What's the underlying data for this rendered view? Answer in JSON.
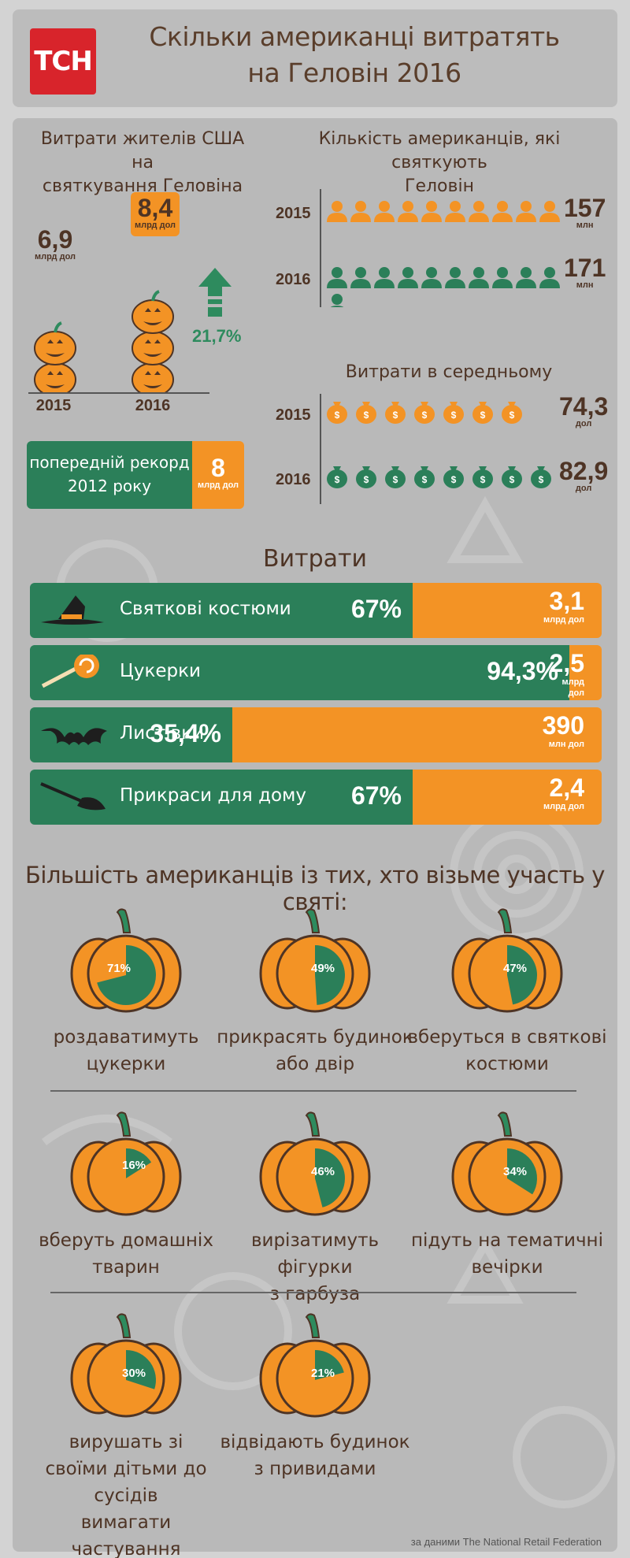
{
  "header": {
    "logo_text": "ТСН",
    "title_line1": "Скільки американці витратять",
    "title_line2": "на Геловін 2016"
  },
  "spending": {
    "heading_line1": "Витрати жителів США на",
    "heading_line2": "святкування Геловіна",
    "v2015": "6,9",
    "v2016": "8,4",
    "unit": "млрд дол",
    "year2015": "2015",
    "year2016": "2016",
    "growth": "21,7%",
    "record_line1": "попередній рекорд",
    "record_line2": "2012 року",
    "record_value": "8",
    "record_unit": "млрд дол"
  },
  "celebrants": {
    "heading_line1": "Кількість американців, які святкують",
    "heading_line2": "Геловін",
    "year2015": "2015",
    "year2016": "2016",
    "v2015": "157",
    "v2016": "171",
    "unit": "млн"
  },
  "average": {
    "heading": "Витрати в середньому",
    "year2015": "2015",
    "year2016": "2016",
    "v2015": "74,3",
    "v2016": "82,9",
    "unit": "дол"
  },
  "expenses": {
    "heading": "Витрати",
    "rows": [
      {
        "label": "Святкові костюми",
        "pct": "67%",
        "value": "3,1",
        "unit": "млрд дол",
        "icon": "witch-hat-icon"
      },
      {
        "label": "Цукерки",
        "pct": "94,3%",
        "value": "2,5",
        "unit": "млрд дол",
        "icon": "lollipop-icon"
      },
      {
        "label": "Листівки",
        "pct": "35,4%",
        "value": "390",
        "unit": "млн дол",
        "icon": "bat-icon"
      },
      {
        "label": "Прикраси для дому",
        "pct": "67%",
        "value": "2,4",
        "unit": "млрд дол",
        "icon": "broom-icon"
      }
    ]
  },
  "majority": {
    "heading": "Більшість американців із тих, хто візьме участь у святі:",
    "items": [
      {
        "pct": "71%",
        "line1": "роздаватимуть",
        "line2": "цукерки",
        "line3": ""
      },
      {
        "pct": "49%",
        "line1": "прикрасять будинок",
        "line2": "або двір",
        "line3": ""
      },
      {
        "pct": "47%",
        "line1": "вберуться в святкові",
        "line2": "костюми",
        "line3": ""
      },
      {
        "pct": "16%",
        "line1": "вберуть домашніх",
        "line2": "тварин",
        "line3": ""
      },
      {
        "pct": "46%",
        "line1": "вирізатимуть фігурки",
        "line2": "з гарбуза",
        "line3": ""
      },
      {
        "pct": "34%",
        "line1": "підуть на тематичні",
        "line2": "вечірки",
        "line3": ""
      },
      {
        "pct": "30%",
        "line1": "вирушать зі",
        "line2": "своїми дітьми до сусідів",
        "line3": "вимагати частування"
      },
      {
        "pct": "21%",
        "line1": "відвідають будинок",
        "line2": "з привидами",
        "line3": ""
      }
    ]
  },
  "source": "за даними The National Retail Federation",
  "colors": {
    "orange": "#f39325",
    "green": "#2b7f59",
    "brown": "#4e3425",
    "red": "#d8242b"
  },
  "chart_data": [
    {
      "type": "bar",
      "title": "Витрати жителів США на святкування Геловіна",
      "categories": [
        "2015",
        "2016"
      ],
      "values": [
        6.9,
        8.4
      ],
      "unit": "млрд дол",
      "growth_pct": 21.7,
      "previous_record": {
        "year": "2012",
        "value": 8
      }
    },
    {
      "type": "bar",
      "title": "Кількість американців, які святкують Геловін",
      "categories": [
        "2015",
        "2016"
      ],
      "values": [
        157,
        171
      ],
      "unit": "млн"
    },
    {
      "type": "bar",
      "title": "Витрати в середньому",
      "categories": [
        "2015",
        "2016"
      ],
      "values": [
        74.3,
        82.9
      ],
      "unit": "дол"
    },
    {
      "type": "bar",
      "title": "Витрати",
      "categories": [
        "Святкові костюми",
        "Цукерки",
        "Листівки",
        "Прикраси для дому"
      ],
      "series": [
        {
          "values": [
            67,
            94.3,
            35.4,
            67
          ]
        }
      ],
      "amounts": [
        "3,1 млрд дол",
        "2,5 млрд дол",
        "390 млн дол",
        "2,4 млрд дол"
      ]
    },
    {
      "type": "pie",
      "title": "Більшість американців із тих, хто візьме участь у святі:",
      "categories": [
        "роздаватимуть цукерки",
        "прикрасять будинок або двір",
        "вберуться в святкові костюми",
        "вберуть домашніх тварин",
        "вирізатимуть фігурки з гарбуза",
        "підуть на тематичні вечірки",
        "вирушать зі своїми дітьми до сусідів вимагати частування",
        "відвідають будинок з привидами"
      ],
      "values": [
        71,
        49,
        47,
        16,
        46,
        34,
        30,
        21
      ]
    }
  ]
}
